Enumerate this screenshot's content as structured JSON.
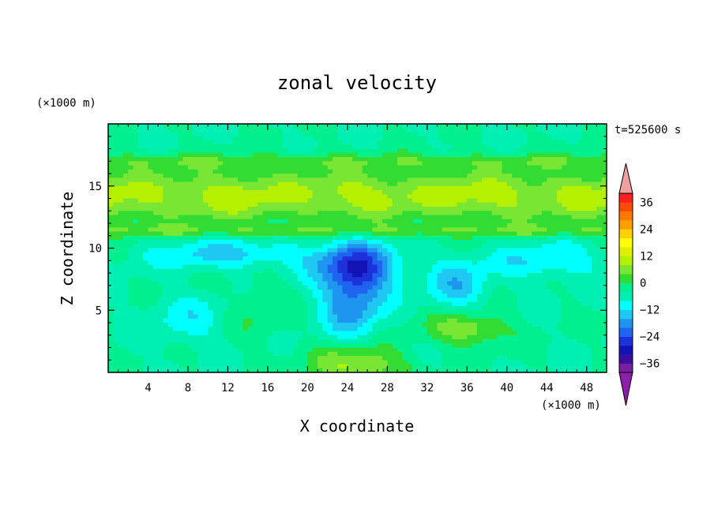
{
  "chart_data": {
    "type": "heatmap",
    "title": "zonal velocity",
    "xlabel": "X coordinate",
    "ylabel": "Z coordinate",
    "x_unit": "(×1000 m)",
    "y_unit": "(×1000 m)",
    "time_label": "t=525600 s",
    "xlim": [
      0,
      50
    ],
    "ylim": [
      0,
      20
    ],
    "x_ticks": [
      4,
      8,
      12,
      16,
      20,
      24,
      28,
      32,
      36,
      40,
      44,
      48
    ],
    "y_ticks": [
      5,
      10,
      15
    ],
    "colorbar": {
      "levels": [
        -40,
        -36,
        -32,
        -28,
        -24,
        -20,
        -16,
        -12,
        -8,
        -4,
        0,
        4,
        8,
        12,
        16,
        20,
        24,
        28,
        32,
        36,
        40
      ],
      "tick_values": [
        -36,
        -24,
        -12,
        0,
        12,
        24,
        36
      ],
      "tick_labels": [
        "−36",
        "−24",
        "−12",
        "0",
        "12",
        "24",
        "36"
      ],
      "colors": [
        "#7a1fa2",
        "#3a0fa0",
        "#1414b4",
        "#1e32dc",
        "#1e64f0",
        "#1e96f0",
        "#1ec8f0",
        "#00ffff",
        "#00f0b4",
        "#00f090",
        "#32dc32",
        "#78e632",
        "#b4f000",
        "#dcf000",
        "#ffff00",
        "#ffd000",
        "#ffa000",
        "#ff7800",
        "#ff4b00",
        "#ff1e1e"
      ],
      "under_color": "#8c1eaa",
      "over_color": "#f0a0a0"
    },
    "field_structures": [
      {
        "kind": "band",
        "z": 17.0,
        "width": 0.6,
        "value": 1
      },
      {
        "kind": "band",
        "z": 14.2,
        "width": 2.2,
        "value": 9
      },
      {
        "kind": "band",
        "z": 11.4,
        "width": 0.5,
        "value": 2
      },
      {
        "kind": "blob",
        "x": 25,
        "z": 8.5,
        "rx": 4,
        "rz": 2,
        "value": -20
      },
      {
        "kind": "blob",
        "x": 24.5,
        "z": 5.5,
        "rx": 3,
        "rz": 3,
        "value": -14
      },
      {
        "kind": "blob",
        "x": 25,
        "z": 0.6,
        "rx": 4.5,
        "rz": 1.6,
        "value": 14
      },
      {
        "kind": "blob",
        "x": 36,
        "z": 3.5,
        "rx": 4,
        "rz": 1.3,
        "value": 12
      },
      {
        "kind": "blob",
        "x": 15,
        "z": 5,
        "rx": 3,
        "rz": 3,
        "value": 4
      },
      {
        "kind": "blob",
        "x": 8,
        "z": 4.2,
        "rx": 4,
        "rz": 2,
        "value": -6
      },
      {
        "kind": "blob",
        "x": 12,
        "z": 9.5,
        "rx": 8,
        "rz": 1.2,
        "value": -10
      },
      {
        "kind": "blob",
        "x": 44,
        "z": 9,
        "rx": 6,
        "rz": 1.5,
        "value": -8
      },
      {
        "kind": "blob",
        "x": 35,
        "z": 7,
        "rx": 3,
        "rz": 2,
        "value": -10
      }
    ]
  }
}
